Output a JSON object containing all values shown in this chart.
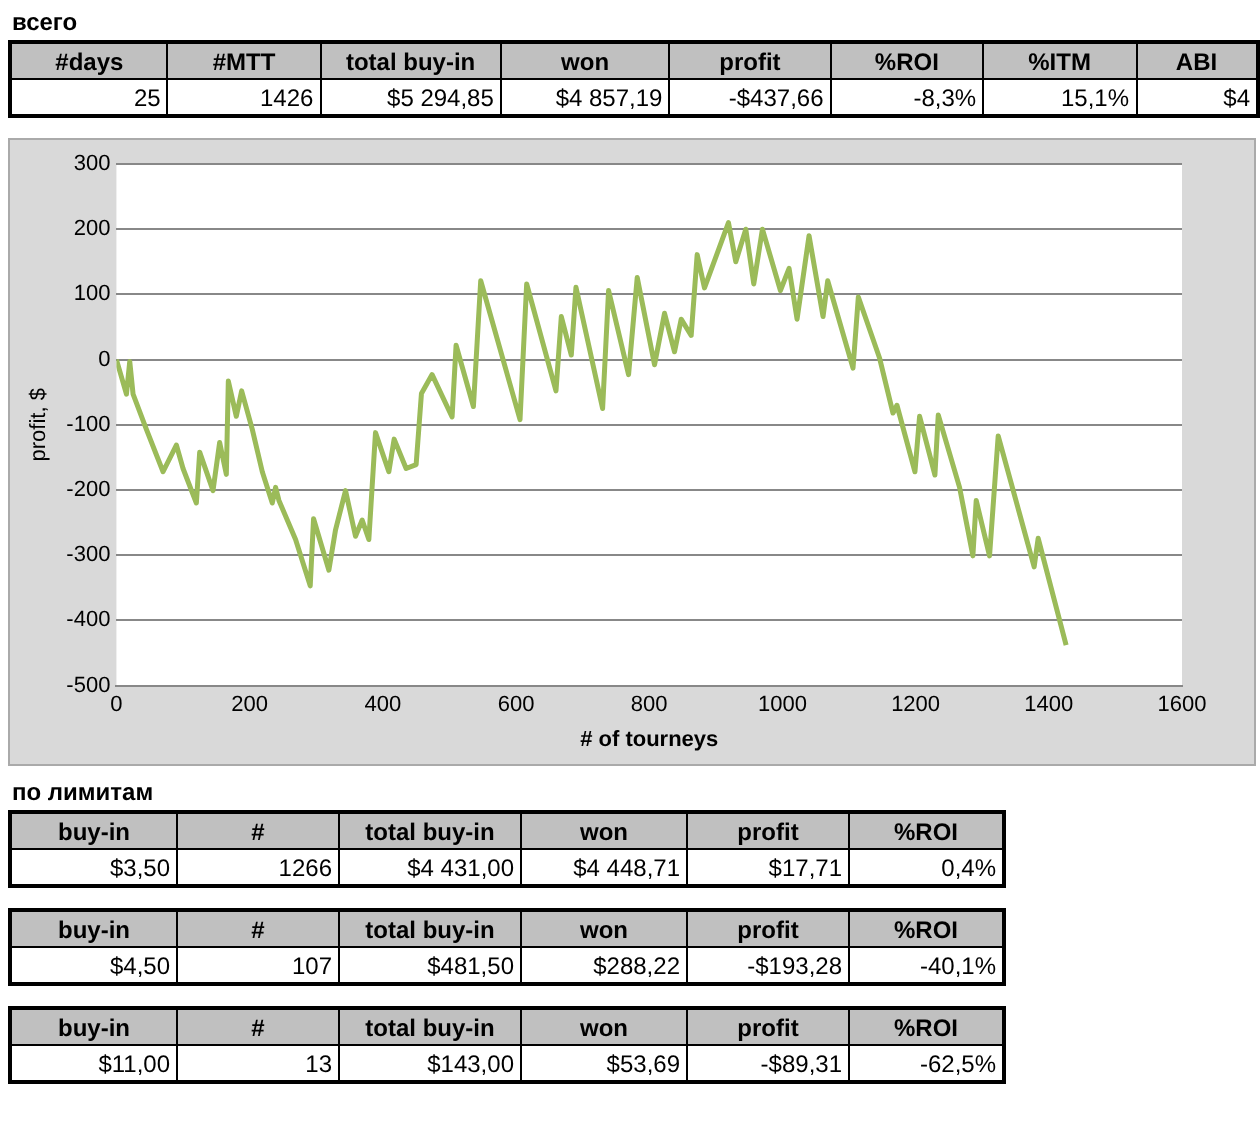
{
  "chart_data": [
    {
      "type": "other",
      "title": "всего",
      "categories": [
        "#days",
        "#MTT",
        "total buy-in",
        "won",
        "profit",
        "%ROI",
        "%ITM",
        "ABI"
      ],
      "annotations": [
        "25",
        "1426",
        "$5 294,85",
        "$4 857,19",
        "-$437,66",
        "-8,3%",
        "15,1%",
        "$4"
      ]
    },
    {
      "type": "line",
      "xlabel": "# of tourneys",
      "ylabel": "profit, $",
      "xlim": [
        0,
        1600
      ],
      "xticks": [
        0,
        200,
        400,
        600,
        800,
        1000,
        1200,
        1400,
        1600
      ],
      "ylim": [
        -500,
        300
      ],
      "yticks": [
        -500,
        -400,
        -300,
        -200,
        -100,
        0,
        100,
        200,
        300
      ],
      "grid": "y",
      "legend": false,
      "marker": "none",
      "line_style": "solid",
      "series": [
        {
          "color": "#9bbb59",
          "x": [
            0,
            15,
            20,
            25,
            45,
            70,
            90,
            100,
            120,
            125,
            145,
            155,
            165,
            168,
            180,
            188,
            204,
            219,
            234,
            239,
            244,
            269,
            291,
            296,
            319,
            329,
            344,
            359,
            369,
            379,
            389,
            409,
            417,
            435,
            450,
            458,
            474,
            504,
            510,
            536,
            547,
            606,
            616,
            660,
            668,
            683,
            690,
            730,
            739,
            769,
            782,
            808,
            823,
            838,
            848,
            863,
            872,
            883,
            919,
            930,
            945,
            957,
            970,
            997,
            1010,
            1022,
            1040,
            1061,
            1068,
            1106,
            1114,
            1146,
            1166,
            1172,
            1199,
            1206,
            1229,
            1234,
            1266,
            1286,
            1291,
            1311,
            1324,
            1356,
            1378,
            1384,
            1426
          ],
          "values": [
            0,
            -53,
            -3,
            -53,
            -107,
            -172,
            -131,
            -167,
            -220,
            -142,
            -201,
            -127,
            -176,
            -33,
            -87,
            -48,
            -107,
            -172,
            -220,
            -196,
            -216,
            -276,
            -347,
            -244,
            -323,
            -261,
            -201,
            -271,
            -246,
            -276,
            -112,
            -172,
            -122,
            -167,
            -161,
            -52,
            -23,
            -88,
            22,
            -72,
            121,
            -92,
            116,
            -48,
            66,
            7,
            111,
            -75,
            106,
            -23,
            126,
            -8,
            71,
            12,
            62,
            37,
            161,
            110,
            210,
            150,
            200,
            116,
            200,
            106,
            140,
            62,
            190,
            66,
            121,
            -13,
            96,
            2,
            -82,
            -70,
            -172,
            -87,
            -177,
            -85,
            -196,
            -301,
            -216,
            -301,
            -117,
            -236,
            -318,
            -274,
            -438
          ]
        }
      ]
    },
    {
      "type": "other",
      "title": "по лимитам",
      "categories": [
        "buy-in",
        "#",
        "total buy-in",
        "won",
        "profit",
        "%ROI"
      ],
      "annotations": [
        "$3,50",
        "1266",
        "$4 431,00",
        "$4 448,71",
        "$17,71",
        "0,4%",
        "$4,50",
        "107",
        "$481,50",
        "$288,22",
        "-$193,28",
        "-40,1%",
        "$11,00",
        "13",
        "$143,00",
        "$53,69",
        "-$89,31",
        "-62,5%"
      ]
    }
  ]
}
